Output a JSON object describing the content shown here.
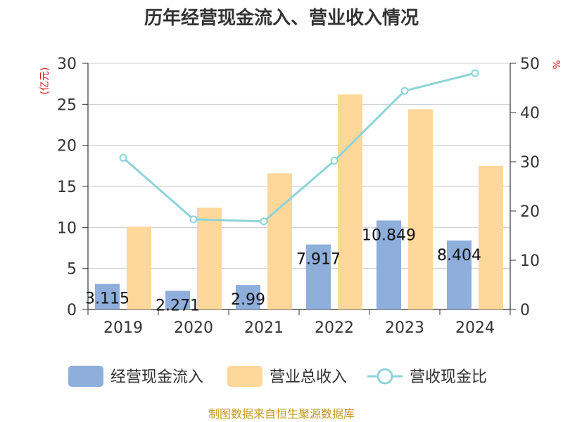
{
  "chart_data": {
    "type": "bar",
    "title": "历年经营现金流入、营业收入情况",
    "left_unit": "(亿元)",
    "right_unit": "%",
    "categories": [
      "2019",
      "2020",
      "2021",
      "2022",
      "2023",
      "2024"
    ],
    "series": [
      {
        "name": "经营现金流入",
        "type": "bar",
        "axis": "left",
        "color": "#8eaedb",
        "values": [
          3.115,
          2.271,
          2.99,
          7.917,
          10.849,
          8.404
        ],
        "labels": [
          "3.115",
          "2.271",
          "2.99",
          "7.917",
          "10.849",
          "8.404"
        ]
      },
      {
        "name": "营业总收入",
        "type": "bar",
        "axis": "left",
        "color": "#fdd89a",
        "values": [
          10.1,
          12.4,
          16.6,
          26.2,
          24.4,
          17.5
        ]
      },
      {
        "name": "营收现金比",
        "type": "line",
        "axis": "right",
        "color": "#8dd4d8",
        "values": [
          30.8,
          18.3,
          17.9,
          30.2,
          44.4,
          48.0
        ]
      }
    ],
    "y_left": {
      "min": 0,
      "max": 30,
      "ticks": [
        "0",
        "5",
        "10",
        "15",
        "20",
        "25",
        "30"
      ]
    },
    "y_right": {
      "min": 0,
      "max": 50,
      "ticks": [
        "0",
        "10",
        "20",
        "30",
        "40",
        "50"
      ]
    },
    "grid": true,
    "legend_position": "bottom"
  },
  "source": "制图数据来自恒生聚源数据库"
}
